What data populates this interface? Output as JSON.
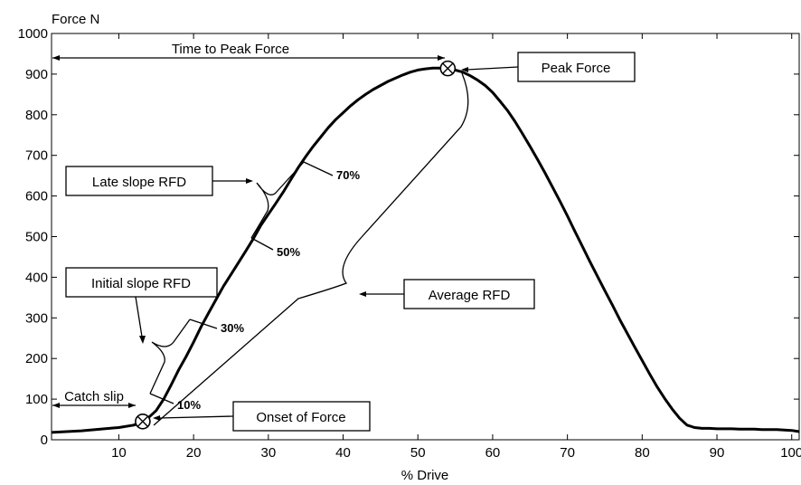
{
  "chart_data": {
    "type": "line",
    "ylabel": "Force N",
    "xlabel": "% Drive",
    "xlim": [
      1,
      101
    ],
    "ylim": [
      0,
      1000
    ],
    "xticks": [
      10,
      20,
      30,
      40,
      50,
      60,
      70,
      80,
      90,
      100
    ],
    "yticks": [
      0,
      100,
      200,
      300,
      400,
      500,
      600,
      700,
      800,
      900,
      1000
    ],
    "grid": false,
    "series": [
      {
        "x": [
          1,
          5,
          10,
          12,
          13.2,
          14,
          15,
          16,
          17,
          18,
          19,
          20,
          21,
          22,
          23,
          24,
          25,
          26,
          27,
          28,
          29,
          30,
          31,
          32,
          33,
          34,
          35,
          36,
          37,
          38,
          39,
          40,
          41,
          42,
          43,
          44,
          45,
          46,
          47,
          48,
          49,
          50,
          51,
          52,
          53,
          54,
          55,
          56,
          57,
          58,
          59,
          60,
          61,
          62,
          63,
          64,
          65,
          66,
          67,
          68,
          69,
          70,
          71,
          72,
          73,
          74,
          75,
          76,
          77,
          78,
          79,
          80,
          81,
          82,
          83,
          84,
          85,
          86,
          87,
          88,
          89,
          90,
          91,
          92,
          93,
          94,
          95,
          96,
          97,
          98,
          99,
          100,
          101
        ],
        "values": [
          18,
          22,
          30,
          36,
          45,
          55,
          72,
          100,
          135,
          172,
          205,
          240,
          278,
          312,
          345,
          378,
          407,
          436,
          465,
          495,
          528,
          555,
          582,
          610,
          640,
          670,
          697,
          722,
          745,
          768,
          788,
          805,
          822,
          837,
          850,
          862,
          872,
          882,
          890,
          898,
          905,
          910,
          913,
          915,
          915,
          914,
          910,
          905,
          896,
          885,
          872,
          855,
          833,
          810,
          783,
          753,
          722,
          690,
          657,
          622,
          587,
          551,
          513,
          476,
          439,
          403,
          367,
          332,
          296,
          262,
          228,
          195,
          162,
          130,
          102,
          76,
          53,
          36,
          30,
          28,
          28,
          27,
          27,
          27,
          26,
          26,
          26,
          25,
          25,
          25,
          24,
          23,
          20
        ]
      }
    ],
    "markers": [
      {
        "x": 13.2,
        "y": 45
      },
      {
        "x": 54,
        "y": 914
      }
    ],
    "annotations": {
      "time_to_peak": "Time to Peak Force",
      "peak_force": "Peak Force",
      "late_slope": "Late slope RFD",
      "initial_slope": "Initial slope RFD",
      "average_rfd": "Average RFD",
      "catch_slip": "Catch slip",
      "onset": "Onset of Force",
      "pct_70": "70%",
      "pct_50": "50%",
      "pct_30": "30%",
      "pct_10": "10%"
    }
  }
}
